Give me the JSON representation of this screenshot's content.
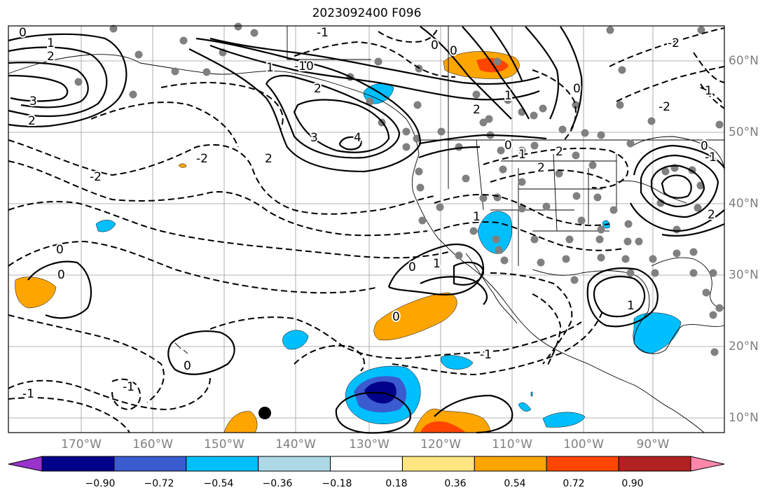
{
  "title": "2023092400 F096",
  "lat_labels": [
    "60°N",
    "50°N",
    "40°N",
    "30°N",
    "20°N",
    "10°N"
  ],
  "lon_labels": [
    "170°W",
    "160°W",
    "150°W",
    "140°W",
    "130°W",
    "120°W",
    "110°W",
    "100°W",
    "90°W"
  ],
  "colorbar": {
    "labels": [
      "−0.90",
      "−0.72",
      "−0.54",
      "−0.36",
      "−0.18",
      "0.18",
      "0.36",
      "0.54",
      "0.72",
      "0.90"
    ],
    "colors": [
      "#9933cc",
      "#00008b",
      "#3b5bd0",
      "#00bfff",
      "#add8e6",
      "#ffffff",
      "#ffe680",
      "#ffa500",
      "#ff4500",
      "#b22222",
      "#ff88aa"
    ]
  },
  "contour_labels": [
    "0",
    "1",
    "2",
    "3",
    "2",
    "-1",
    "-1",
    "0",
    "1",
    "0",
    "0",
    "2",
    "3",
    "4",
    "2",
    "1",
    "-2",
    "-2",
    "2",
    "0",
    "2",
    "1",
    "2",
    "0",
    "-1",
    "-2",
    "-2",
    "0",
    "1",
    "0",
    "0",
    "0",
    "-1",
    "-1",
    "1",
    "0",
    "0",
    "1",
    "-1",
    "2",
    "1"
  ],
  "colors": {
    "dashed": "#000000",
    "solid": "#000000",
    "grid": "#9a9a9a",
    "station": "#808080",
    "coast": "#000000"
  }
}
